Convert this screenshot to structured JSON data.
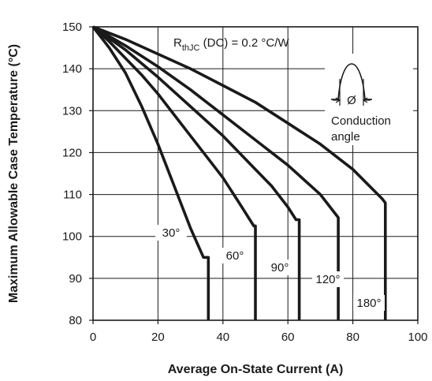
{
  "chart_data": {
    "type": "line",
    "xlabel": "Average On-State Current (A)",
    "ylabel": "Maximum Allowable Case Temperature (°C)",
    "xlim": [
      0,
      100
    ],
    "ylim": [
      80,
      150
    ],
    "xticks": [
      0,
      20,
      40,
      60,
      80,
      100
    ],
    "yticks": [
      80,
      90,
      100,
      110,
      120,
      130,
      140,
      150
    ],
    "grid": true,
    "series": [
      {
        "name": "30°",
        "x": [
          0,
          5,
          10,
          15,
          20,
          25,
          30,
          34,
          35.5,
          35.5
        ],
        "y": [
          150,
          145,
          139,
          131,
          122,
          112,
          102,
          95,
          95,
          80
        ]
      },
      {
        "name": "60°",
        "x": [
          0,
          5,
          10,
          15,
          20,
          25,
          30,
          35,
          40,
          45,
          49.5,
          50,
          50
        ],
        "y": [
          150,
          146.5,
          142.5,
          138.5,
          134,
          129,
          124,
          119,
          114,
          108,
          102.5,
          102.5,
          80
        ]
      },
      {
        "name": "90°",
        "x": [
          0,
          10,
          20,
          30,
          40,
          50,
          55,
          60,
          62.5,
          63.5,
          63.5
        ],
        "y": [
          150,
          144.5,
          138,
          131,
          124,
          116,
          112,
          107,
          104,
          104,
          80
        ]
      },
      {
        "name": "120°",
        "x": [
          0,
          10,
          20,
          30,
          40,
          50,
          60,
          70,
          75,
          75.5,
          75.5
        ],
        "y": [
          150,
          145.5,
          140.5,
          135,
          129,
          123,
          117,
          110,
          105,
          104.5,
          80
        ]
      },
      {
        "name": "180°",
        "x": [
          0,
          10,
          20,
          30,
          40,
          50,
          60,
          70,
          80,
          89,
          90,
          90
        ],
        "y": [
          150,
          147,
          143.5,
          140,
          136,
          132,
          127,
          122,
          116,
          109,
          108,
          80
        ]
      }
    ],
    "annotations": {
      "rthjc_main": "R",
      "rthjc_sub": "thJC",
      "rthjc_rest": " (DC) = 0.2 °C/W",
      "phi_symbol": "Ø",
      "conduction_line1": "Conduction",
      "conduction_line2": "angle"
    },
    "line_color": "#1a1a1a",
    "grid_color": "#1a1a1a"
  }
}
